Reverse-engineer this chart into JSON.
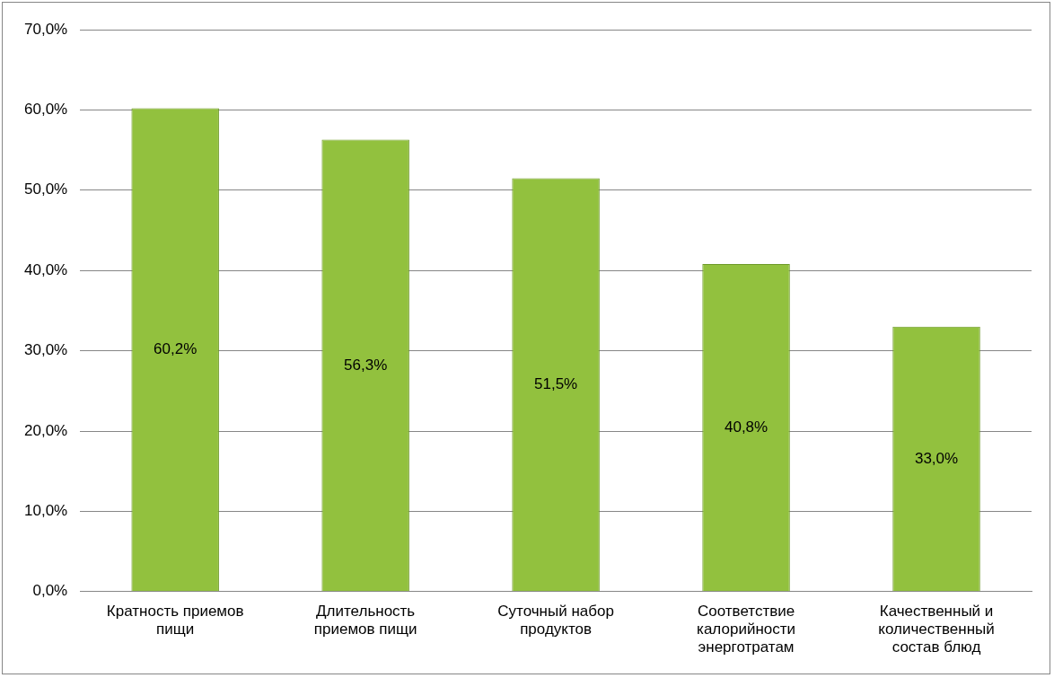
{
  "chart_data": {
    "type": "bar",
    "categories": [
      "Кратность приемов пищи",
      "Длительность приемов пищи",
      "Суточный набор продуктов",
      "Соответствие калорийности энерготратам",
      "Качественный и количественный состав блюд"
    ],
    "values": [
      60.2,
      56.3,
      51.5,
      40.8,
      33.0
    ],
    "value_labels": [
      "60,2%",
      "56,3%",
      "51,5%",
      "40,8%",
      "33,0%"
    ],
    "color": "#92c13e",
    "ylim": [
      0,
      70
    ],
    "yticks": [
      {
        "value": 0,
        "label": "0,0%"
      },
      {
        "value": 10,
        "label": "10,0%"
      },
      {
        "value": 20,
        "label": "20,0%"
      },
      {
        "value": 30,
        "label": "30,0%"
      },
      {
        "value": 40,
        "label": "40,0%"
      },
      {
        "value": 50,
        "label": "50,0%"
      },
      {
        "value": 60,
        "label": "60,0%"
      },
      {
        "value": 70,
        "label": "70,0%"
      }
    ],
    "grid": "y",
    "legend": false
  }
}
